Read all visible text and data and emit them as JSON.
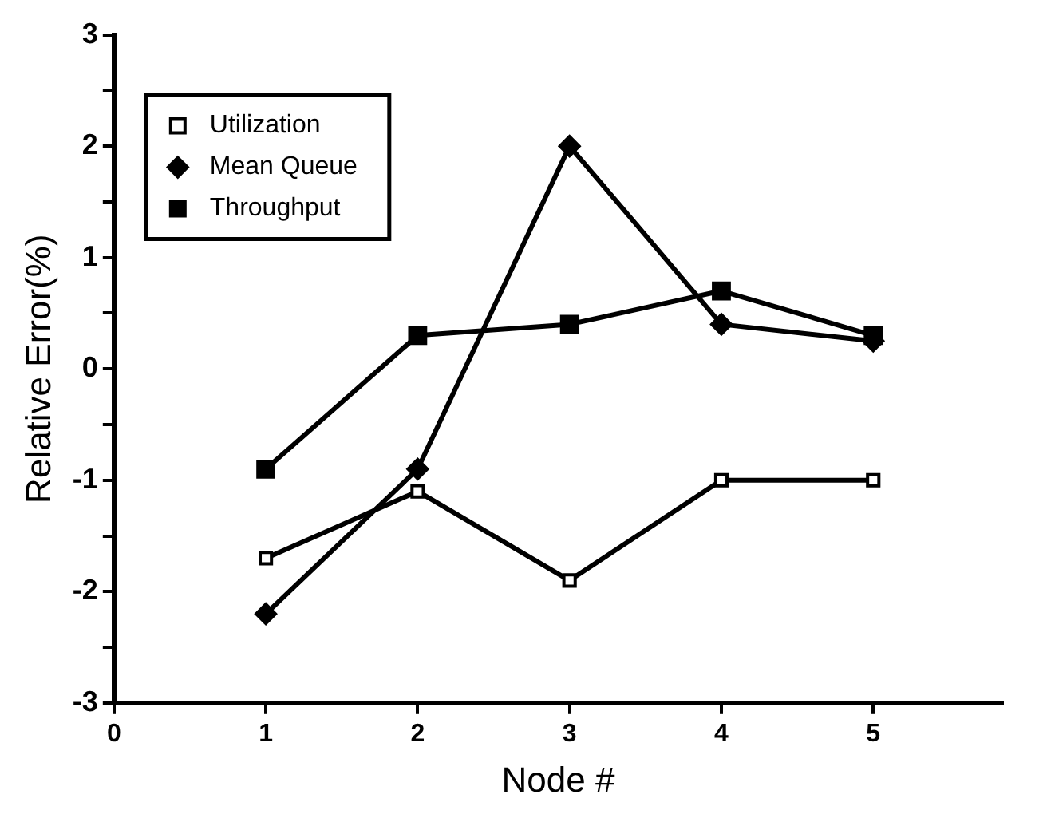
{
  "chart_data": {
    "type": "line",
    "xlabel": "Node #",
    "ylabel": "Relative Error(%)",
    "x": [
      1,
      2,
      3,
      4,
      5
    ],
    "series": [
      {
        "name": "Utilization",
        "color": "#000000",
        "marker": "square",
        "values": [
          -1.7,
          -1.1,
          -1.9,
          -1.0,
          -1.0
        ]
      },
      {
        "name": "Mean Queue",
        "color": "#000000",
        "marker": "diamond",
        "values": [
          -2.2,
          -0.9,
          2.0,
          0.4,
          0.25
        ]
      },
      {
        "name": "Throughput",
        "color": "#000000",
        "marker": "square",
        "values": [
          -0.9,
          0.3,
          0.4,
          0.7,
          0.3
        ]
      }
    ],
    "xlim": [
      0,
      5.85
    ],
    "xticks": [
      0,
      1,
      2,
      3,
      4,
      5
    ],
    "ylim": [
      -3,
      3
    ],
    "yticks": [
      -3,
      {
        "value": -2.5,
        "label": null
      },
      -2,
      {
        "value": -1.5,
        "label": null
      },
      -1,
      {
        "value": -0.5,
        "label": null
      },
      0,
      {
        "value": 0.5,
        "label": null
      },
      1,
      {
        "value": 1.5,
        "label": null
      },
      2,
      {
        "value": 2.5,
        "label": null
      },
      3
    ],
    "grid": false,
    "legend": "top left",
    "line_style": "solid"
  }
}
